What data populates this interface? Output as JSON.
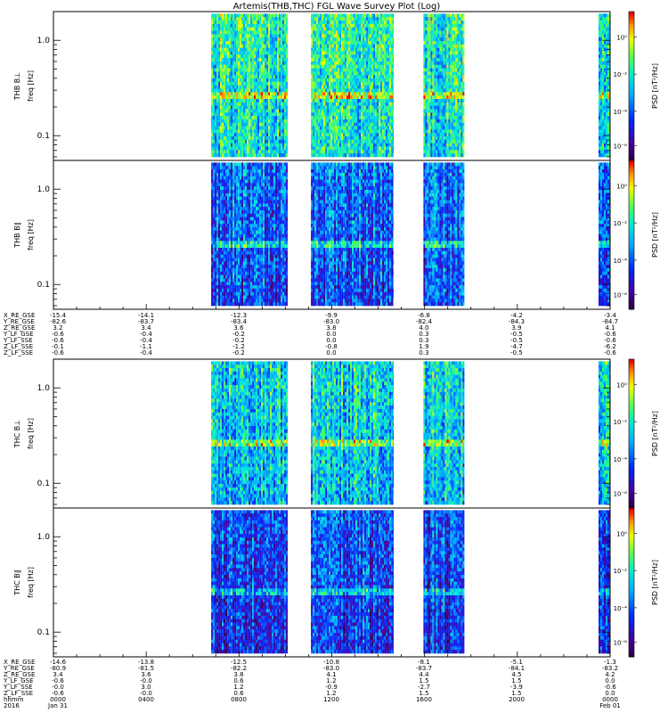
{
  "chart_data": {
    "type": "heatmap",
    "title": "Artemis(THB,THC) FGL Wave Survey Plot (Log)",
    "y_ticks": [
      "1.0",
      "0.1"
    ],
    "ylim": [
      0.055,
      2.0
    ],
    "y_scale": "log",
    "colorbar_label": "PSD [nT²/Hz]",
    "colorbar_ticks": [
      "10⁰",
      "10⁻²",
      "10⁻⁴",
      "10⁻⁶"
    ],
    "colormap": "rainbow",
    "panels": [
      {
        "name": "THB B⊥",
        "ylabel": "freq [Hz]",
        "intensity": 0.62,
        "yellow_band_hz": 0.27
      },
      {
        "name": "THB B∥",
        "ylabel": "freq [Hz]",
        "intensity": 0.38,
        "yellow_band_hz": 0.27
      },
      {
        "name": "THC B⊥",
        "ylabel": "freq [Hz]",
        "intensity": 0.55,
        "yellow_band_hz": 0.27
      },
      {
        "name": "THC B∥",
        "ylabel": "freq [Hz]",
        "intensity": 0.33,
        "yellow_band_hz": 0.27
      }
    ],
    "x_range_hhmm": [
      0,
      2400
    ],
    "data_intervals_hhmm": [
      [
        648,
        1006
      ],
      [
        1106,
        1440
      ],
      [
        1557,
        1743
      ],
      [
        2330,
        2400
      ]
    ],
    "orbit_table_1": {
      "labels": [
        "X_RE_GSE",
        "Y_RE_GSE",
        "Z_RE_GSE",
        "Y_LF_GSE",
        "Y_LF_SSE",
        "Z_LF_SSE",
        "Z_LF_SSE"
      ],
      "columns": [
        [
          "-15.4",
          "-82.6",
          "3.2",
          "-0.6",
          "-0.6",
          "-0.1",
          "-0.6"
        ],
        [
          "-14.1",
          "-83.7",
          "3.4",
          "-0.4",
          "-0.4",
          "-1.1",
          "-0.4"
        ],
        [
          "-12.3",
          "-83.4",
          "3.6",
          "-0.2",
          "-0.2",
          "-1.2",
          "-0.2"
        ],
        [
          "-9.9",
          "-83.0",
          "3.8",
          "0.0",
          "0.0",
          "-0.8",
          "0.0"
        ],
        [
          "-6.8",
          "-82.4",
          "4.0",
          "0.3",
          "0.3",
          "1.9",
          "0.3"
        ],
        [
          "-4.2",
          "-84.3",
          "3.9",
          "-0.5",
          "-0.5",
          "-4.7",
          "-0.5"
        ],
        [
          "-3.4",
          "-84.7",
          "4.1",
          "-0.6",
          "-0.6",
          "-6.2",
          "-0.6"
        ]
      ]
    },
    "orbit_table_2": {
      "labels": [
        "X_RE_GSE",
        "Y_RE_GSE",
        "Z_RE_GSE",
        "Y_LF_GSE",
        "Y_LF_SSE",
        "Z_LF_SSE",
        "hhmm",
        "2016"
      ],
      "columns": [
        [
          "-14.6",
          "-80.9",
          "3.4",
          "-0.6",
          "-0.0",
          "-0.6",
          "0000",
          "Jan 31"
        ],
        [
          "-13.8",
          "-81.5",
          "3.6",
          "-0.0",
          "3.0",
          "-0.0",
          "0400",
          ""
        ],
        [
          "-12.5",
          "-82.2",
          "3.8",
          "0.6",
          "1.2",
          "0.6",
          "0800",
          ""
        ],
        [
          "-10.8",
          "-83.0",
          "4.1",
          "1.2",
          "-0.9",
          "1.2",
          "1200",
          ""
        ],
        [
          "-8.1",
          "-83.7",
          "4.4",
          "1.5",
          "-2.7",
          "1.5",
          "1600",
          ""
        ],
        [
          "-5.1",
          "-84.1",
          "4.5",
          "1.5",
          "-3.9",
          "1.5",
          "2000",
          ""
        ],
        [
          "-1.3",
          "-83.2",
          "4.2",
          "0.0",
          "-0.6",
          "0.0",
          "0000",
          "Feb 01"
        ]
      ]
    }
  }
}
